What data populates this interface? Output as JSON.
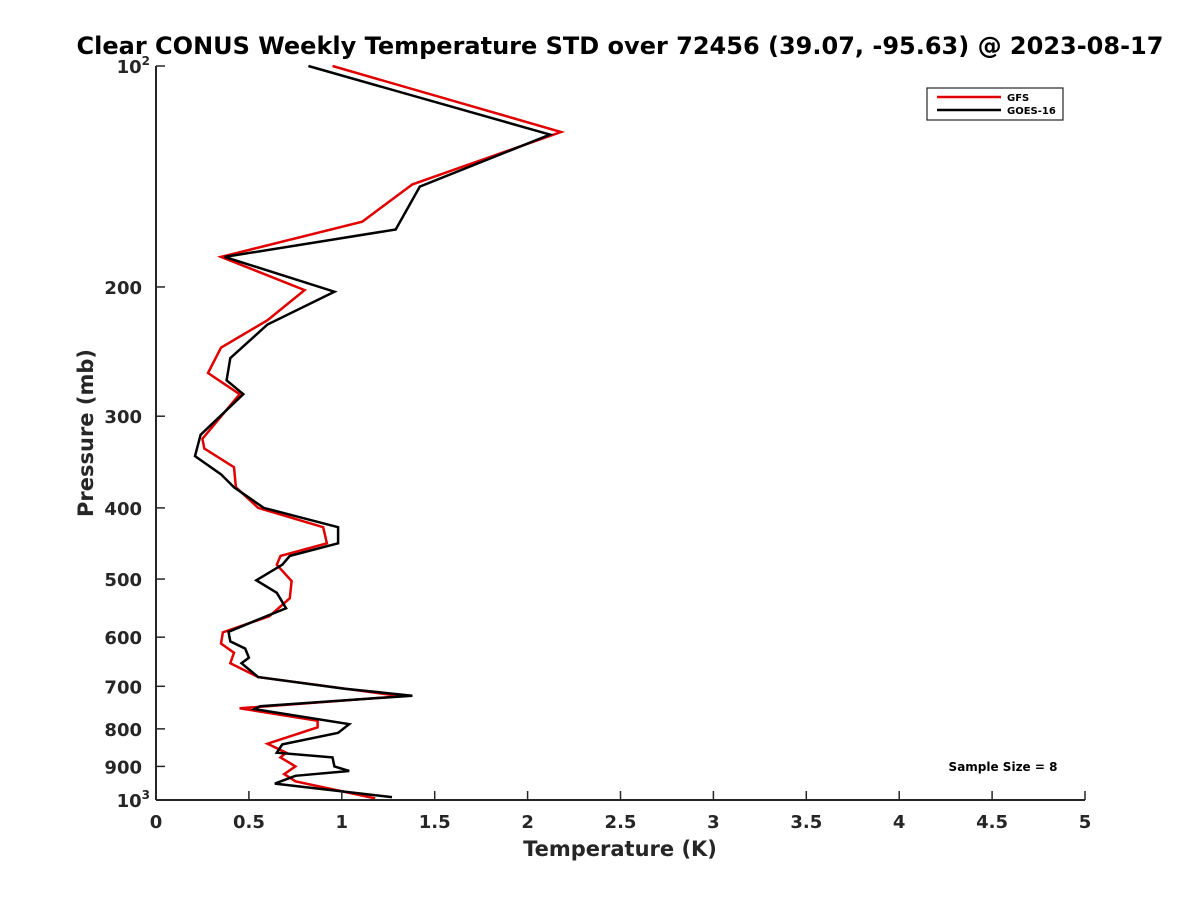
{
  "chart_data": {
    "type": "line",
    "title": "Clear CONUS Weekly Temperature STD over 72456 (39.07, -95.63) @ 2023-08-17",
    "xlabel": "Temperature (K)",
    "ylabel": "Pressure (mb)",
    "xlim": [
      0,
      5
    ],
    "ylim": [
      100,
      1000
    ],
    "yscale": "log",
    "y_reversed": true,
    "grid": false,
    "legend_position": "top-right",
    "x_ticks": [
      "0",
      "0.5",
      "1",
      "1.5",
      "2",
      "2.5",
      "3",
      "3.5",
      "4",
      "4.5",
      "5"
    ],
    "y_ticks": [
      {
        "value": 100,
        "label": "10",
        "sup": "2"
      },
      {
        "value": 200,
        "label": "200",
        "sup": ""
      },
      {
        "value": 300,
        "label": "300",
        "sup": ""
      },
      {
        "value": 400,
        "label": "400",
        "sup": ""
      },
      {
        "value": 500,
        "label": "500",
        "sup": ""
      },
      {
        "value": 600,
        "label": "600",
        "sup": ""
      },
      {
        "value": 700,
        "label": "700",
        "sup": ""
      },
      {
        "value": 800,
        "label": "800",
        "sup": ""
      },
      {
        "value": 900,
        "label": "900",
        "sup": ""
      },
      {
        "value": 1000,
        "label": "10",
        "sup": "3"
      }
    ],
    "series": [
      {
        "name": "GFS",
        "color": "#e00000",
        "x": [
          0.95,
          2.18,
          1.38,
          1.11,
          0.35,
          0.8,
          0.6,
          0.35,
          0.28,
          0.45,
          0.25,
          0.26,
          0.42,
          0.43,
          0.55,
          0.9,
          0.92,
          0.67,
          0.65,
          0.73,
          0.72,
          0.61,
          0.36,
          0.35,
          0.42,
          0.4,
          0.55,
          1.32,
          0.45,
          0.87,
          0.87,
          0.6,
          0.7,
          0.67,
          0.75,
          0.69,
          0.75,
          1.18
        ],
        "y": [
          100,
          123,
          145,
          163,
          182,
          202,
          222,
          242,
          262,
          280,
          322,
          332,
          352,
          375,
          400,
          425,
          447,
          465,
          478,
          503,
          531,
          562,
          591,
          612,
          630,
          651,
          680,
          722,
          750,
          780,
          796,
          838,
          862,
          875,
          900,
          922,
          943,
          995
        ]
      },
      {
        "name": "GOES-16",
        "color": "#000000",
        "x": [
          0.82,
          2.12,
          1.42,
          1.29,
          0.37,
          0.96,
          0.6,
          0.4,
          0.38,
          0.47,
          0.24,
          0.21,
          0.35,
          0.42,
          0.58,
          0.98,
          0.98,
          0.72,
          0.68,
          0.54,
          0.65,
          0.7,
          0.57,
          0.39,
          0.4,
          0.48,
          0.5,
          0.46,
          0.55,
          1.01,
          1.38,
          0.56,
          0.53,
          1.04,
          0.98,
          0.68,
          0.65,
          0.95,
          0.96,
          1.04,
          0.75,
          0.64,
          1.27
        ],
        "y": [
          100,
          124,
          146,
          167,
          182,
          203,
          225,
          250,
          268,
          280,
          318,
          340,
          360,
          375,
          400,
          425,
          447,
          465,
          478,
          502,
          522,
          548,
          565,
          590,
          608,
          622,
          640,
          651,
          680,
          705,
          721,
          745,
          752,
          788,
          810,
          840,
          862,
          875,
          900,
          913,
          927,
          950,
          991
        ]
      }
    ],
    "annotations": [
      "Sample Size = 8"
    ]
  }
}
